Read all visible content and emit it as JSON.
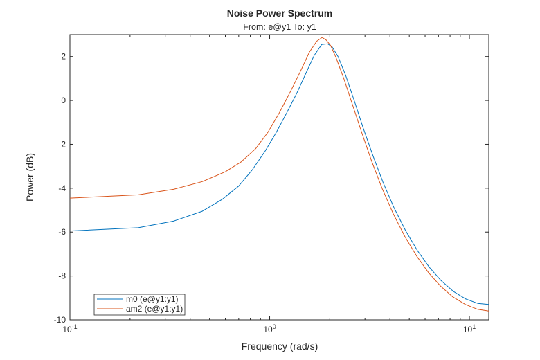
{
  "chart_data": {
    "type": "line",
    "title": "Noise Power Spectrum",
    "subtitle": "From: e@y1  To: y1",
    "xlabel": "Frequency (rad/s)",
    "ylabel": "Power (dB)",
    "xscale": "log",
    "xlim": [
      0.1,
      12.5
    ],
    "ylim": [
      -10,
      3
    ],
    "grid": false,
    "legend_position": "bottom-left",
    "yticks": [
      {
        "value": 2,
        "label": "2"
      },
      {
        "value": 0,
        "label": "0"
      },
      {
        "value": -2,
        "label": "-2"
      },
      {
        "value": -4,
        "label": "-4"
      },
      {
        "value": -6,
        "label": "-6"
      },
      {
        "value": -8,
        "label": "-8"
      },
      {
        "value": -10,
        "label": "-10"
      }
    ],
    "xticks": [
      {
        "value": 0.1,
        "base": "10",
        "exp": "-1"
      },
      {
        "value": 1,
        "base": "10",
        "exp": "0"
      },
      {
        "value": 10,
        "base": "10",
        "exp": "1"
      }
    ],
    "series": [
      {
        "name": "m0 (e@y1:y1)",
        "color": "#0072BD",
        "x": [
          0.1,
          0.22,
          0.33,
          0.46,
          0.58,
          0.7,
          0.82,
          0.95,
          1.08,
          1.22,
          1.37,
          1.52,
          1.67,
          1.82,
          1.95,
          2.05,
          2.2,
          2.4,
          2.65,
          2.95,
          3.3,
          3.7,
          4.2,
          4.8,
          5.5,
          6.3,
          7.2,
          8.3,
          9.6,
          11.0,
          12.5
        ],
        "y": [
          -5.95,
          -5.8,
          -5.5,
          -5.05,
          -4.5,
          -3.9,
          -3.15,
          -2.3,
          -1.45,
          -0.55,
          0.35,
          1.25,
          2.05,
          2.55,
          2.58,
          2.45,
          2.0,
          1.15,
          0.0,
          -1.3,
          -2.55,
          -3.75,
          -4.9,
          -5.95,
          -6.85,
          -7.6,
          -8.2,
          -8.7,
          -9.05,
          -9.25,
          -9.3
        ]
      },
      {
        "name": "am2 (e@y1:y1)",
        "color": "#D95319",
        "x": [
          0.1,
          0.22,
          0.33,
          0.46,
          0.6,
          0.72,
          0.85,
          0.98,
          1.12,
          1.27,
          1.43,
          1.58,
          1.72,
          1.83,
          1.92,
          2.02,
          2.15,
          2.35,
          2.6,
          2.9,
          3.25,
          3.65,
          4.15,
          4.75,
          5.45,
          6.25,
          7.15,
          8.25,
          9.55,
          11.0,
          12.5
        ],
        "y": [
          -4.45,
          -4.3,
          -4.05,
          -3.7,
          -3.25,
          -2.8,
          -2.2,
          -1.45,
          -0.55,
          0.4,
          1.35,
          2.2,
          2.7,
          2.87,
          2.75,
          2.5,
          1.95,
          1.0,
          -0.2,
          -1.5,
          -2.8,
          -4.0,
          -5.15,
          -6.2,
          -7.1,
          -7.85,
          -8.45,
          -8.95,
          -9.3,
          -9.52,
          -9.6
        ]
      }
    ]
  }
}
